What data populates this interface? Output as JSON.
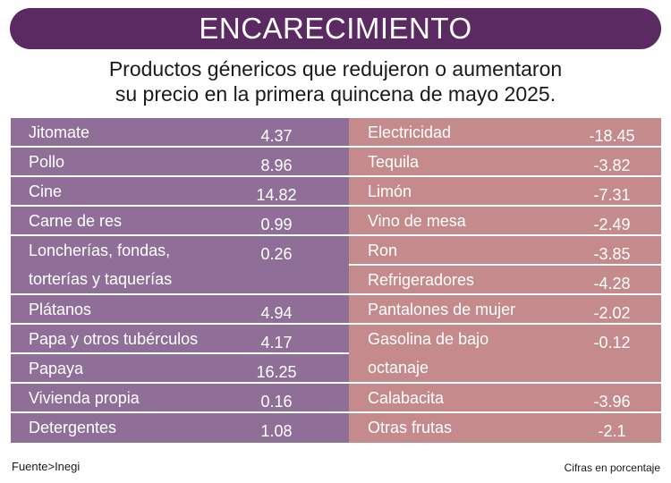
{
  "header": {
    "title": "ENCARECIMIENTO",
    "subtitle_line1": "Productos génericos que redujeron o aumentaron",
    "subtitle_line2": "su precio en la primera quincena de mayo 2025."
  },
  "colors": {
    "title_bg": "#5b2a62",
    "left_rows": "#8f6f98",
    "right_rows": "#c48a8c"
  },
  "left_table": [
    {
      "name": "Jitomate",
      "value": "4.37"
    },
    {
      "name": "Pollo",
      "value": "8.96"
    },
    {
      "name": "Cine",
      "value": "14.82"
    },
    {
      "name": "Carne de res",
      "value": "0.99"
    },
    {
      "name": "Loncherías, fondas,",
      "name2": "torterías y taquerías",
      "value": "0.26"
    },
    {
      "name": "Plátanos",
      "value": "4.94"
    },
    {
      "name": "Papa y otros tubérculos",
      "value": "4.17"
    },
    {
      "name": "Papaya",
      "value": "16.25"
    },
    {
      "name": "Vivienda propia",
      "value": "0.16"
    },
    {
      "name": "Detergentes",
      "value": "1.08"
    }
  ],
  "right_table": [
    {
      "name": "Electricidad",
      "value": "-18.45"
    },
    {
      "name": "Tequila",
      "value": "-3.82"
    },
    {
      "name": "Limón",
      "value": "-7.31"
    },
    {
      "name": "Vino de mesa",
      "value": "-2.49"
    },
    {
      "name": "Ron",
      "value": "-3.85"
    },
    {
      "name": "Refrigeradores",
      "value": "-4.28"
    },
    {
      "name": "Pantalones de mujer",
      "value": "-2.02"
    },
    {
      "name": "Gasolina de bajo",
      "name2": "octanaje",
      "value": "-0.12"
    },
    {
      "name": "Calabacita",
      "value": "-3.96"
    },
    {
      "name": "Otras frutas",
      "value": "-2.1"
    }
  ],
  "footer": {
    "source": "Fuente>Inegi",
    "note": "Cifras en porcentaje"
  }
}
